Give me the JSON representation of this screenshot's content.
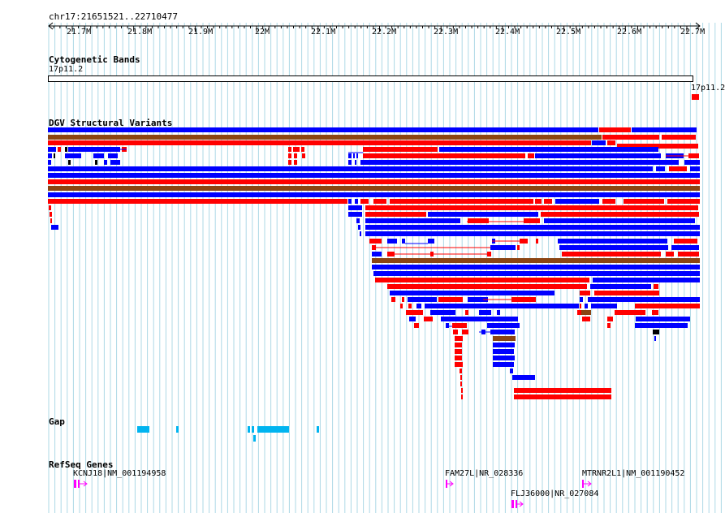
{
  "coords": "chr17:21651521..22710477",
  "ruler": {
    "ticks": [
      "21.7M",
      "21.8M",
      "21.9M",
      "22M",
      "22.1M",
      "22.2M",
      "22.3M",
      "22.4M",
      "22.5M",
      "22.6M",
      "22.7M"
    ]
  },
  "tracks": {
    "cyto": {
      "title": "Cytogenetic Bands",
      "band_label": "17p11.2",
      "band_label_right": "17p11.2"
    },
    "dgv": {
      "title": "DGV Structural Variants"
    },
    "gap": {
      "title": "Gap"
    },
    "refseq": {
      "title": "RefSeq Genes",
      "genes": [
        "KCNJ18|NM_001194958",
        "FAM27L|NR_028336",
        "MTRNR2L1|NM_001190452",
        "FLJ36000|NR_027084"
      ]
    }
  },
  "colors": {
    "gain": "#0000ff",
    "loss": "#ff0000",
    "both": "#8b4513",
    "gap": "#00b4f0",
    "gene": "#ff00ff",
    "grid": "#add8e6"
  }
}
